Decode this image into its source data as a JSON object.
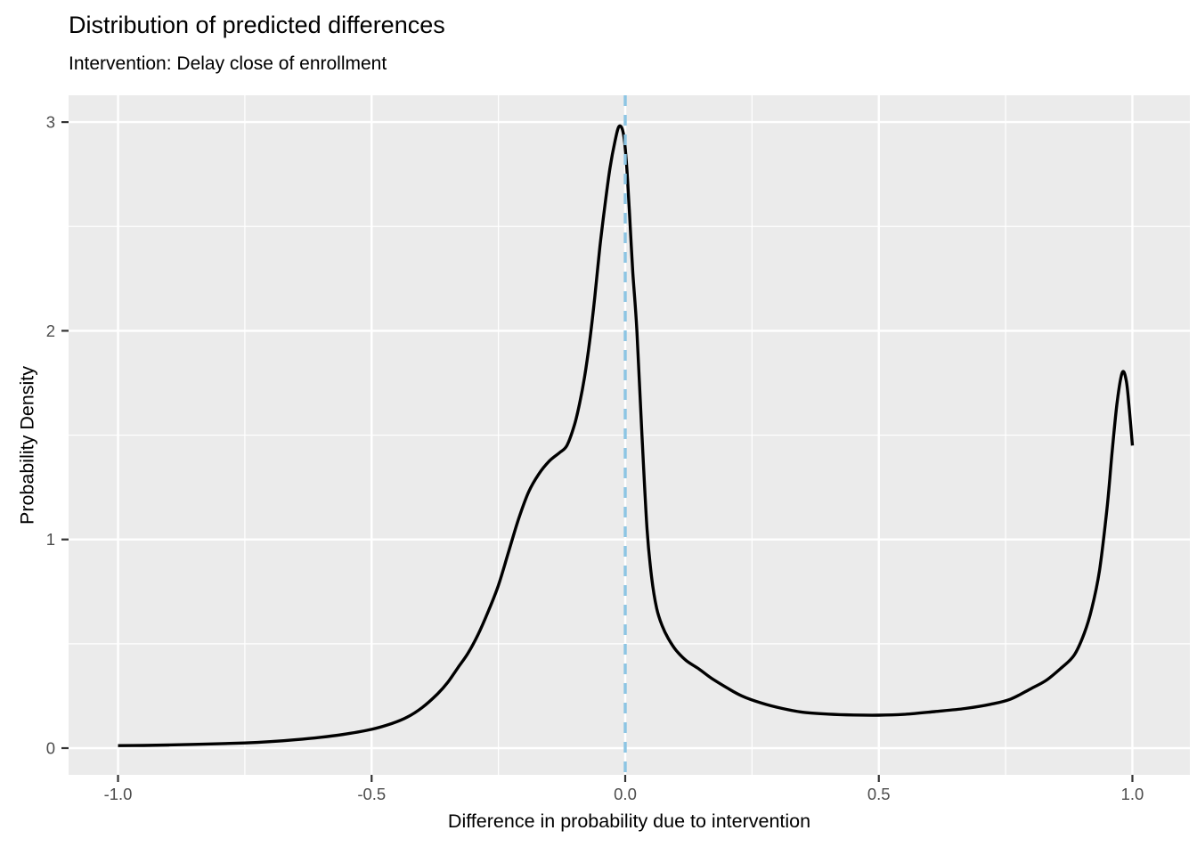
{
  "chart_data": {
    "type": "line",
    "subtype": "density",
    "title": "Distribution of predicted differences",
    "subtitle": "Intervention: Delay close of enrollment",
    "xlabel": "Difference in probability due to intervention",
    "ylabel": "Probability Density",
    "x_tick_values": [
      -1.0,
      -0.5,
      0.0,
      0.5,
      1.0
    ],
    "x_tick_labels": [
      "-1.0",
      "-0.5",
      "0.0",
      "0.5",
      "1.0"
    ],
    "y_tick_values": [
      0,
      1,
      2,
      3
    ],
    "y_tick_labels": [
      "0",
      "1",
      "2",
      "3"
    ],
    "x_minor_gridlines": [
      -0.75,
      -0.25,
      0.25,
      0.75
    ],
    "y_minor_gridlines": [
      0.5,
      1.5,
      2.5
    ],
    "xlim": [
      -1.0975,
      1.1133
    ],
    "ylim": [
      -0.128,
      3.1285
    ],
    "grid": true,
    "legend": false,
    "reference_line": {
      "x": 0.0,
      "style": "dashed",
      "color": "#8CC5E3"
    },
    "series": [
      {
        "name": "predicted-difference-density",
        "color": "#000000",
        "points": [
          [
            -1.0,
            0.012
          ],
          [
            -0.95,
            0.013
          ],
          [
            -0.9,
            0.015
          ],
          [
            -0.85,
            0.018
          ],
          [
            -0.8,
            0.021
          ],
          [
            -0.75,
            0.025
          ],
          [
            -0.7,
            0.031
          ],
          [
            -0.65,
            0.04
          ],
          [
            -0.6,
            0.052
          ],
          [
            -0.55,
            0.068
          ],
          [
            -0.5,
            0.09
          ],
          [
            -0.46,
            0.118
          ],
          [
            -0.43,
            0.148
          ],
          [
            -0.4,
            0.195
          ],
          [
            -0.37,
            0.26
          ],
          [
            -0.35,
            0.315
          ],
          [
            -0.33,
            0.385
          ],
          [
            -0.31,
            0.455
          ],
          [
            -0.29,
            0.545
          ],
          [
            -0.27,
            0.655
          ],
          [
            -0.25,
            0.78
          ],
          [
            -0.23,
            0.94
          ],
          [
            -0.21,
            1.1
          ],
          [
            -0.19,
            1.23
          ],
          [
            -0.17,
            1.315
          ],
          [
            -0.15,
            1.375
          ],
          [
            -0.13,
            1.415
          ],
          [
            -0.115,
            1.45
          ],
          [
            -0.1,
            1.55
          ],
          [
            -0.09,
            1.65
          ],
          [
            -0.08,
            1.78
          ],
          [
            -0.07,
            1.95
          ],
          [
            -0.06,
            2.16
          ],
          [
            -0.05,
            2.4
          ],
          [
            -0.04,
            2.6
          ],
          [
            -0.03,
            2.78
          ],
          [
            -0.02,
            2.91
          ],
          [
            -0.012,
            2.98
          ],
          [
            -0.004,
            2.95
          ],
          [
            0.002,
            2.82
          ],
          [
            0.008,
            2.58
          ],
          [
            0.015,
            2.28
          ],
          [
            0.023,
            2.0
          ],
          [
            0.033,
            1.5
          ],
          [
            0.043,
            1.05
          ],
          [
            0.052,
            0.82
          ],
          [
            0.062,
            0.67
          ],
          [
            0.073,
            0.585
          ],
          [
            0.085,
            0.525
          ],
          [
            0.1,
            0.47
          ],
          [
            0.12,
            0.42
          ],
          [
            0.145,
            0.38
          ],
          [
            0.17,
            0.335
          ],
          [
            0.2,
            0.29
          ],
          [
            0.23,
            0.25
          ],
          [
            0.27,
            0.215
          ],
          [
            0.31,
            0.19
          ],
          [
            0.35,
            0.172
          ],
          [
            0.4,
            0.163
          ],
          [
            0.45,
            0.159
          ],
          [
            0.5,
            0.158
          ],
          [
            0.55,
            0.162
          ],
          [
            0.61,
            0.175
          ],
          [
            0.67,
            0.19
          ],
          [
            0.72,
            0.21
          ],
          [
            0.76,
            0.235
          ],
          [
            0.8,
            0.285
          ],
          [
            0.83,
            0.325
          ],
          [
            0.86,
            0.385
          ],
          [
            0.885,
            0.445
          ],
          [
            0.905,
            0.55
          ],
          [
            0.92,
            0.67
          ],
          [
            0.935,
            0.85
          ],
          [
            0.95,
            1.15
          ],
          [
            0.96,
            1.42
          ],
          [
            0.97,
            1.66
          ],
          [
            0.98,
            1.8
          ],
          [
            0.988,
            1.76
          ],
          [
            0.994,
            1.62
          ],
          [
            1.0,
            1.45
          ]
        ]
      }
    ]
  },
  "style": {
    "panel_bg": "#EBEBEB",
    "gridline_color": "#FFFFFF",
    "tick_mark_color": "#333333",
    "tick_label_color": "#4D4D4D",
    "axis_title_color": "#000000",
    "title_color": "#000000",
    "curve_color": "#000000"
  }
}
